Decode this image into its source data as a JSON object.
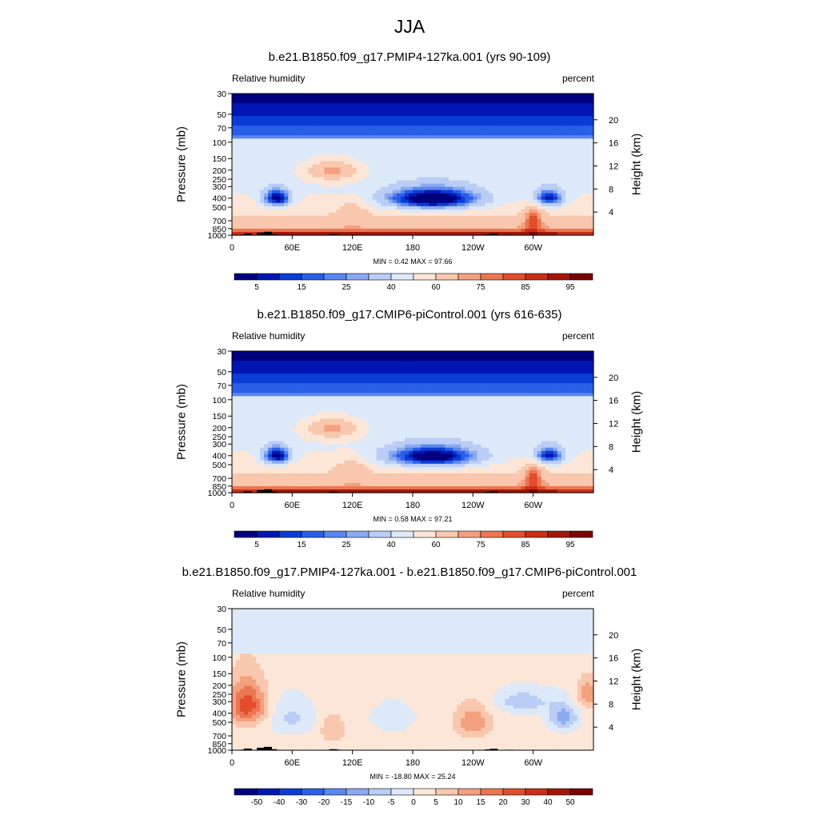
{
  "figure": {
    "title": "JJA"
  },
  "chart_data": [
    {
      "type": "heatmap",
      "title": "b.e21.B1850.f09_g17.PMIP4-127ka.001 (yrs 90-109)",
      "left_label": "Relative humidity",
      "right_label": "percent",
      "ylabel": "Pressure (mb)",
      "ylabel_right": "Height (km)",
      "minmax": "MIN =   0.42  MAX =  97.66",
      "x_ticks": [
        "0",
        "60E",
        "120E",
        "180",
        "120W",
        "60W"
      ],
      "y_ticks": [
        "30",
        "50",
        "70",
        "100",
        "150",
        "200",
        "250",
        "300",
        "400",
        "500",
        "700",
        "850",
        "1000"
      ],
      "right_ticks": [
        "20",
        "16",
        "12",
        "8",
        "4"
      ],
      "colorbar_labels": [
        "5",
        "15",
        "25",
        "40",
        "60",
        "75",
        "85",
        "95"
      ],
      "colors": [
        "#00007f",
        "#0017b3",
        "#0b3dd6",
        "#2a5fe8",
        "#5a87ee",
        "#8ca9f2",
        "#b9cdf5",
        "#dde9f8",
        "#fbe6d8",
        "#f8c7ad",
        "#f3a07f",
        "#ec7652",
        "#e24e2d",
        "#c92f17",
        "#a2170a",
        "#7a0403"
      ]
    },
    {
      "type": "heatmap",
      "title": "b.e21.B1850.f09_g17.CMIP6-piControl.001 (yrs 616-635)",
      "left_label": "Relative humidity",
      "right_label": "percent",
      "ylabel": "Pressure (mb)",
      "ylabel_right": "Height (km)",
      "minmax": "MIN =   0.58  MAX =  97.21",
      "x_ticks": [
        "0",
        "60E",
        "120E",
        "180",
        "120W",
        "60W"
      ],
      "y_ticks": [
        "30",
        "50",
        "70",
        "100",
        "150",
        "200",
        "250",
        "300",
        "400",
        "500",
        "700",
        "850",
        "1000"
      ],
      "right_ticks": [
        "20",
        "16",
        "12",
        "8",
        "4"
      ],
      "colorbar_labels": [
        "5",
        "15",
        "25",
        "40",
        "60",
        "75",
        "85",
        "95"
      ],
      "colors": [
        "#00007f",
        "#0017b3",
        "#0b3dd6",
        "#2a5fe8",
        "#5a87ee",
        "#8ca9f2",
        "#b9cdf5",
        "#dde9f8",
        "#fbe6d8",
        "#f8c7ad",
        "#f3a07f",
        "#ec7652",
        "#e24e2d",
        "#c92f17",
        "#a2170a",
        "#7a0403"
      ]
    },
    {
      "type": "heatmap",
      "title": "b.e21.B1850.f09_g17.PMIP4-127ka.001 - b.e21.B1850.f09_g17.CMIP6-piControl.001",
      "left_label": "Relative humidity",
      "right_label": "percent",
      "ylabel": "Pressure (mb)",
      "ylabel_right": "Height (km)",
      "minmax": "MIN = -18.80  MAX =  25.24",
      "x_ticks": [
        "0",
        "60E",
        "120E",
        "180",
        "120W",
        "60W"
      ],
      "y_ticks": [
        "30",
        "50",
        "70",
        "100",
        "150",
        "200",
        "250",
        "300",
        "400",
        "500",
        "700",
        "850",
        "1000"
      ],
      "right_ticks": [
        "20",
        "16",
        "12",
        "8",
        "4"
      ],
      "colorbar_labels": [
        "-50",
        "-40",
        "-30",
        "-20",
        "-15",
        "-10",
        "-5",
        "0",
        "5",
        "10",
        "15",
        "20",
        "30",
        "40",
        "50"
      ],
      "colors": [
        "#00007f",
        "#0017b3",
        "#0b3dd6",
        "#2a5fe8",
        "#5a87ee",
        "#8ca9f2",
        "#b9cdf5",
        "#dde9f8",
        "#fbe6d8",
        "#f8c7ad",
        "#f3a07f",
        "#ec7652",
        "#e24e2d",
        "#c92f17",
        "#a2170a",
        "#7a0403"
      ]
    }
  ]
}
